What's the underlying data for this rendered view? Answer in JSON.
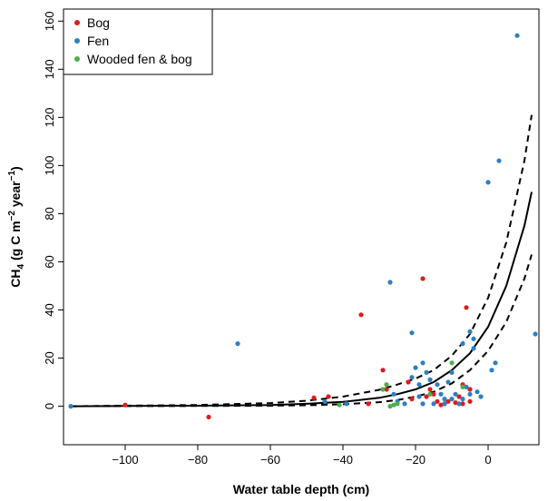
{
  "chart_data": {
    "type": "scatter",
    "xlabel": "Water table depth (cm)",
    "ylabel": {
      "main": "CH",
      "sub": "4",
      "unit_open": " (g C m",
      "exp1": "−2",
      "mid": " year",
      "exp2": "−1",
      "unit_close": ")"
    },
    "xlim": [
      -117,
      14
    ],
    "ylim": [
      -16,
      165
    ],
    "xticks": [
      -100,
      -80,
      -60,
      -40,
      -20,
      0
    ],
    "xtick_labels": [
      "−100",
      "−80",
      "−60",
      "−40",
      "−20",
      "0"
    ],
    "yticks": [
      0,
      20,
      40,
      60,
      80,
      100,
      120,
      140,
      160
    ],
    "ytick_labels": [
      "0",
      "20",
      "40",
      "60",
      "80",
      "100",
      "120",
      "140",
      "160"
    ],
    "grid": false,
    "legend_position": "top-left",
    "series": [
      {
        "name": "Bog",
        "color": "#e31a1c",
        "points": [
          [
            -100,
            0.5
          ],
          [
            -77,
            -4.5
          ],
          [
            -48,
            3.5
          ],
          [
            -44,
            4
          ],
          [
            -35,
            38
          ],
          [
            -33,
            1
          ],
          [
            -29,
            15
          ],
          [
            -28,
            7
          ],
          [
            -22,
            10
          ],
          [
            -21,
            3
          ],
          [
            -18,
            53
          ],
          [
            -17,
            4
          ],
          [
            -16,
            7
          ],
          [
            -15,
            5
          ],
          [
            -14,
            2
          ],
          [
            -13,
            0.5
          ],
          [
            -12,
            1
          ],
          [
            -11,
            2
          ],
          [
            -9,
            1.5
          ],
          [
            -8,
            4
          ],
          [
            -7,
            9
          ],
          [
            -7,
            1
          ],
          [
            -6,
            41
          ],
          [
            -5,
            2
          ],
          [
            -5,
            7
          ]
        ]
      },
      {
        "name": "Fen",
        "color": "#2f7fc1",
        "points": [
          [
            -115,
            0
          ],
          [
            -69,
            26
          ],
          [
            -45,
            2
          ],
          [
            -39,
            1
          ],
          [
            -27,
            51.5
          ],
          [
            -26,
            5
          ],
          [
            -25,
            2
          ],
          [
            -23,
            1
          ],
          [
            -21,
            30.5
          ],
          [
            -21,
            12
          ],
          [
            -20,
            16
          ],
          [
            -19,
            9
          ],
          [
            -19,
            4
          ],
          [
            -18,
            1
          ],
          [
            -18,
            18
          ],
          [
            -17,
            14
          ],
          [
            -16,
            11
          ],
          [
            -15,
            1
          ],
          [
            -14,
            9
          ],
          [
            -13,
            5
          ],
          [
            -12,
            3
          ],
          [
            -12,
            1
          ],
          [
            -11,
            10
          ],
          [
            -10,
            14
          ],
          [
            -10,
            3
          ],
          [
            -9,
            5
          ],
          [
            -8,
            1
          ],
          [
            -7,
            26
          ],
          [
            -7,
            3
          ],
          [
            -6,
            8
          ],
          [
            -5,
            31
          ],
          [
            -5,
            5
          ],
          [
            -4,
            24
          ],
          [
            -4,
            28
          ],
          [
            -3,
            6
          ],
          [
            -2,
            4
          ],
          [
            0,
            93
          ],
          [
            1,
            15
          ],
          [
            2,
            18
          ],
          [
            3,
            102
          ],
          [
            8,
            154
          ],
          [
            13,
            30
          ]
        ]
      },
      {
        "name": "Wooded fen & bog",
        "color": "#4daf4a",
        "points": [
          [
            -41,
            0.5
          ],
          [
            -29,
            7
          ],
          [
            -28,
            9
          ],
          [
            -27,
            0
          ],
          [
            -26,
            0.5
          ],
          [
            -25,
            1
          ],
          [
            -16,
            5
          ],
          [
            -10,
            18
          ],
          [
            -7,
            8
          ]
        ]
      }
    ],
    "fit": {
      "style": "solid",
      "x": [
        -115,
        -100,
        -80,
        -60,
        -50,
        -40,
        -30,
        -25,
        -20,
        -15,
        -10,
        -5,
        0,
        5,
        10,
        12
      ],
      "y": [
        0.0,
        0.1,
        0.2,
        0.5,
        1.0,
        1.8,
        3.5,
        5.0,
        7.0,
        10.0,
        15.0,
        22.0,
        33.0,
        50.0,
        75.0,
        89.0
      ]
    },
    "confidence_band": {
      "style": "dashed",
      "x": [
        -115,
        -100,
        -80,
        -60,
        -50,
        -40,
        -30,
        -25,
        -20,
        -15,
        -10,
        -5,
        0,
        5,
        10,
        12
      ],
      "upper": [
        0.0,
        0.2,
        0.5,
        1.3,
        2.3,
        4.0,
        6.8,
        9.0,
        11.5,
        15.0,
        21.0,
        30.0,
        45.0,
        68.0,
        102.0,
        121.0
      ],
      "lower": [
        0.0,
        0.05,
        0.1,
        0.2,
        0.4,
        0.8,
        1.7,
        2.6,
        4.0,
        6.0,
        9.5,
        15.0,
        23.0,
        35.0,
        53.0,
        63.0
      ]
    }
  }
}
